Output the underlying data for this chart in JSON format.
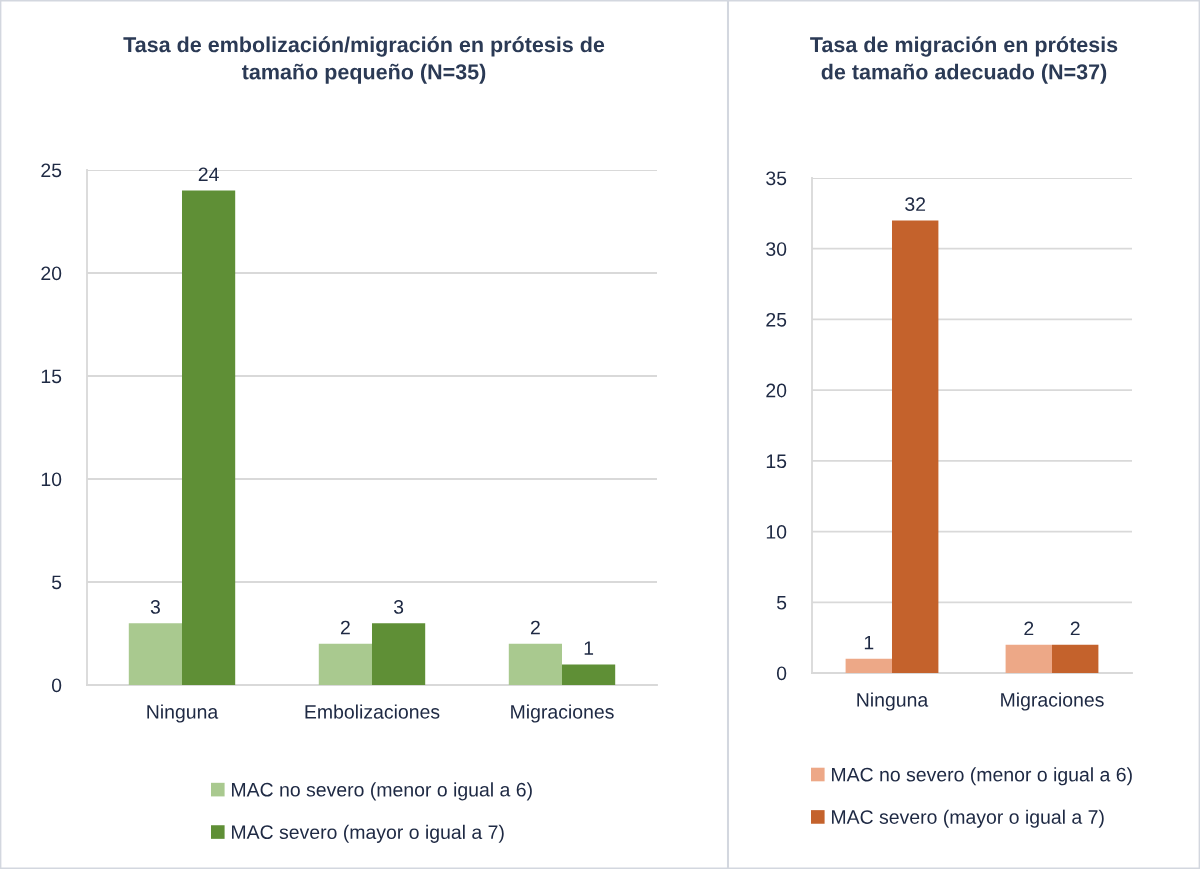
{
  "chart_data": [
    {
      "type": "bar",
      "title": "Tasa de embolización/migración en prótesis de\ntamaño pequeño (N=35)",
      "categories": [
        "Ninguna",
        "Embolizaciones",
        "Migraciones"
      ],
      "series": [
        {
          "name": "MAC no severo (menor o igual a 6)",
          "color": "#a9c98f",
          "values": [
            3,
            2,
            2
          ]
        },
        {
          "name": "MAC severo (mayor o igual a 7)",
          "color": "#5f8f36",
          "values": [
            24,
            3,
            1
          ]
        }
      ],
      "ylim": [
        0,
        25
      ],
      "yticks": [
        0,
        5,
        10,
        15,
        20,
        25
      ],
      "grid": "y",
      "legend": "bottom",
      "data_labels": true
    },
    {
      "type": "bar",
      "title": "Tasa de migración en prótesis\nde tamaño adecuado (N=37)",
      "categories": [
        "Ninguna",
        "Migraciones"
      ],
      "series": [
        {
          "name": "MAC no severo (menor o igual a 6)",
          "color": "#eda887",
          "values": [
            1,
            2
          ]
        },
        {
          "name": "MAC severo (mayor o igual a 7)",
          "color": "#c4622c",
          "values": [
            32,
            2
          ]
        }
      ],
      "ylim": [
        0,
        35
      ],
      "yticks": [
        0,
        5,
        10,
        15,
        20,
        25,
        30,
        35
      ],
      "grid": "y",
      "legend": "bottom",
      "data_labels": true
    }
  ]
}
